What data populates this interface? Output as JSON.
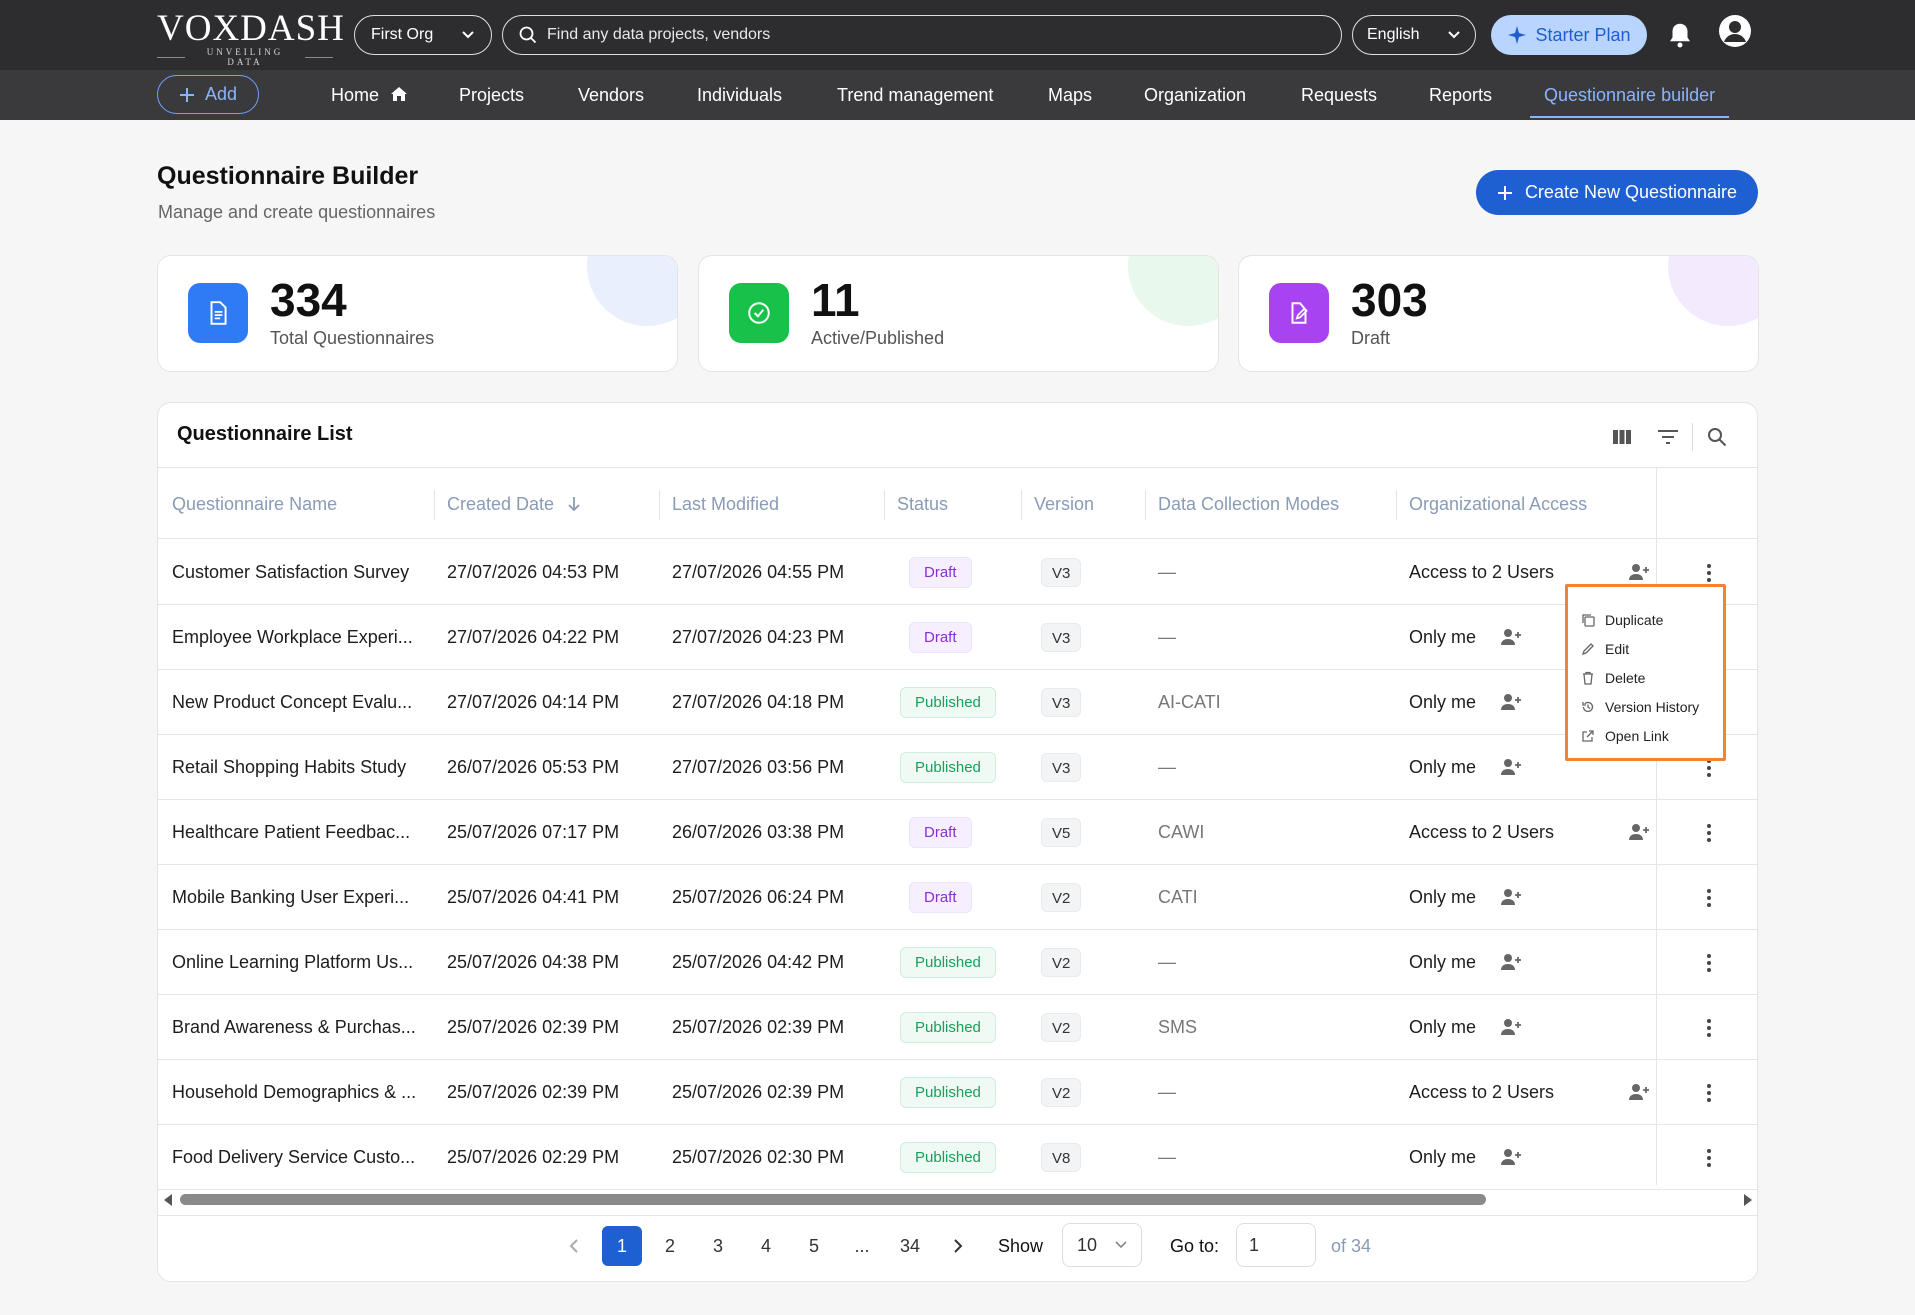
{
  "app": {
    "logo": "VOXDASH",
    "tagline": "UNVEILING DATA",
    "org_select": "First Org",
    "search_placeholder": "Find any data projects, vendors",
    "language": "English",
    "plan": "Starter Plan"
  },
  "nav": {
    "add_label": "Add",
    "items": [
      "Home",
      "Projects",
      "Vendors",
      "Individuals",
      "Trend management",
      "Maps",
      "Organization",
      "Requests",
      "Reports",
      "Questionnaire builder"
    ],
    "active": "Questionnaire builder"
  },
  "page": {
    "title": "Questionnaire Builder",
    "subtitle": "Manage and create questionnaires",
    "create_button": "Create New Questionnaire"
  },
  "stats": [
    {
      "value": "334",
      "label": "Total Questionnaires",
      "icon": "document-icon",
      "color": "#2f7bf5"
    },
    {
      "value": "11",
      "label": "Active/Published",
      "icon": "check-circle-icon",
      "color": "#18c24a"
    },
    {
      "value": "303",
      "label": "Draft",
      "icon": "edit-document-icon",
      "color": "#a743f0"
    }
  ],
  "list": {
    "title": "Questionnaire List",
    "columns": [
      "Questionnaire Name",
      "Created Date",
      "Last Modified",
      "Status",
      "Version",
      "Data Collection Modes",
      "Organizational Access"
    ],
    "rows": [
      {
        "name": "Customer Satisfaction Survey",
        "created": "27/07/2026 04:53 PM",
        "modified": "27/07/2026 04:55 PM",
        "status": "Draft",
        "version": "V3",
        "mode": "—",
        "access": "Access to 2 Users"
      },
      {
        "name": "Employee Workplace Experi...",
        "created": "27/07/2026 04:22 PM",
        "modified": "27/07/2026 04:23 PM",
        "status": "Draft",
        "version": "V3",
        "mode": "—",
        "access": "Only me"
      },
      {
        "name": "New Product Concept Evalu...",
        "created": "27/07/2026 04:14 PM",
        "modified": "27/07/2026 04:18 PM",
        "status": "Published",
        "version": "V3",
        "mode": "AI-CATI",
        "access": "Only me"
      },
      {
        "name": "Retail Shopping Habits Study",
        "created": "26/07/2026 05:53 PM",
        "modified": "27/07/2026 03:56 PM",
        "status": "Published",
        "version": "V3",
        "mode": "—",
        "access": "Only me"
      },
      {
        "name": "Healthcare Patient Feedbac...",
        "created": "25/07/2026 07:17 PM",
        "modified": "26/07/2026 03:38 PM",
        "status": "Draft",
        "version": "V5",
        "mode": "CAWI",
        "access": "Access to 2 Users"
      },
      {
        "name": "Mobile Banking User Experi...",
        "created": "25/07/2026 04:41 PM",
        "modified": "25/07/2026 06:24 PM",
        "status": "Draft",
        "version": "V2",
        "mode": "CATI",
        "access": "Only me"
      },
      {
        "name": "Online Learning Platform Us...",
        "created": "25/07/2026 04:38 PM",
        "modified": "25/07/2026 04:42 PM",
        "status": "Published",
        "version": "V2",
        "mode": "—",
        "access": "Only me"
      },
      {
        "name": "Brand Awareness & Purchas...",
        "created": "25/07/2026 02:39 PM",
        "modified": "25/07/2026 02:39 PM",
        "status": "Published",
        "version": "V2",
        "mode": "SMS",
        "access": "Only me"
      },
      {
        "name": "Household Demographics & ...",
        "created": "25/07/2026 02:39 PM",
        "modified": "25/07/2026 02:39 PM",
        "status": "Published",
        "version": "V2",
        "mode": "—",
        "access": "Access to 2 Users"
      },
      {
        "name": "Food Delivery Service Custo...",
        "created": "25/07/2026 02:29 PM",
        "modified": "25/07/2026 02:30 PM",
        "status": "Published",
        "version": "V8",
        "mode": "—",
        "access": "Only me"
      }
    ]
  },
  "context_menu": [
    "Duplicate",
    "Edit",
    "Delete",
    "Version History",
    "Open Link"
  ],
  "pagination": {
    "pages": [
      "1",
      "2",
      "3",
      "4",
      "5",
      "...",
      "34"
    ],
    "current": "1",
    "show_label": "Show",
    "page_size": "10",
    "goto_label": "Go to:",
    "goto_value": "1",
    "of_label": "of 34"
  }
}
